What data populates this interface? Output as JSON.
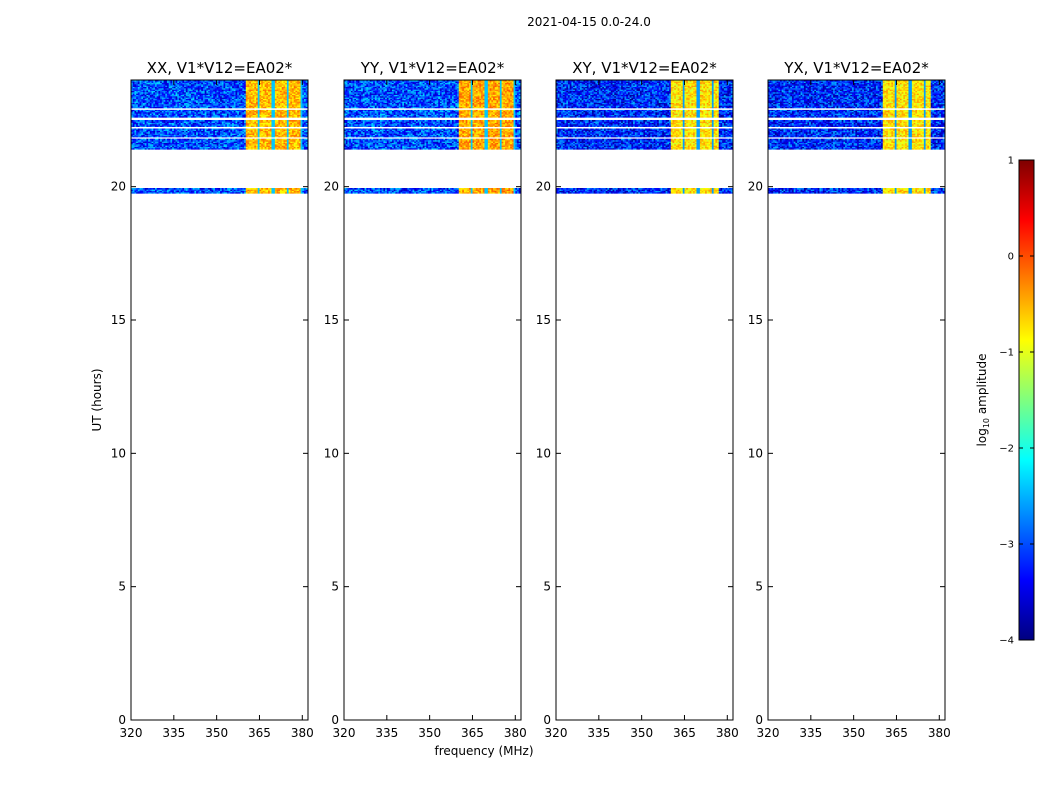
{
  "figure": {
    "suptitle": "2021-04-15 0.0-24.0",
    "xlabel": "frequency (MHz)",
    "ylabel": "UT (hours)"
  },
  "colorbar": {
    "label_base": "log",
    "label_sub": "10",
    "label_rest": " amplitude",
    "range": [
      -4,
      1
    ],
    "ticks": [
      "1",
      "0",
      "−1",
      "−2",
      "−3",
      "−4"
    ],
    "tick_values": [
      1,
      0,
      -1,
      -2,
      -3,
      -4
    ],
    "colormap": "jet",
    "colors": [
      "#00007f",
      "#0000ff",
      "#007fff",
      "#00ffff",
      "#7fff7f",
      "#ffff00",
      "#ff7f00",
      "#ff0000",
      "#7f0000"
    ]
  },
  "chart_data": [
    {
      "type": "heatmap",
      "title": "XX, V1*V12=EA02*",
      "xlabel": "frequency (MHz)",
      "ylabel": "UT (hours)",
      "xlim": [
        320,
        382
      ],
      "ylim": [
        0,
        24
      ],
      "xticks": [
        320,
        335,
        350,
        365,
        380
      ],
      "yticks": [
        0,
        5,
        10,
        15,
        20
      ],
      "data_ut_ranges": [
        [
          21.4,
          24.0
        ],
        [
          19.75,
          19.95
        ]
      ],
      "dominant_log10_amplitude": -3.0,
      "bright_freq_bands_mhz": [
        [
          360,
          380
        ]
      ],
      "bright_log10_amplitude": -0.7
    },
    {
      "type": "heatmap",
      "title": "YY, V1*V12=EA02*",
      "xlabel": "frequency (MHz)",
      "ylabel": "UT (hours)",
      "xlim": [
        320,
        382
      ],
      "ylim": [
        0,
        24
      ],
      "xticks": [
        320,
        335,
        350,
        365,
        380
      ],
      "yticks": [
        0,
        5,
        10,
        15,
        20
      ],
      "data_ut_ranges": [
        [
          21.4,
          24.0
        ],
        [
          19.75,
          19.95
        ]
      ],
      "dominant_log10_amplitude": -3.0,
      "bright_freq_bands_mhz": [
        [
          360,
          380
        ]
      ],
      "bright_log10_amplitude": -0.6
    },
    {
      "type": "heatmap",
      "title": "XY, V1*V12=EA02*",
      "xlabel": "frequency (MHz)",
      "ylabel": "UT (hours)",
      "xlim": [
        320,
        382
      ],
      "ylim": [
        0,
        24
      ],
      "xticks": [
        320,
        335,
        350,
        365,
        380
      ],
      "yticks": [
        0,
        5,
        10,
        15,
        20
      ],
      "data_ut_ranges": [
        [
          21.4,
          24.0
        ],
        [
          19.75,
          19.95
        ]
      ],
      "dominant_log10_amplitude": -3.2,
      "bright_freq_bands_mhz": [
        [
          360,
          377
        ]
      ],
      "bright_log10_amplitude": -0.9
    },
    {
      "type": "heatmap",
      "title": "YX, V1*V12=EA02*",
      "xlabel": "frequency (MHz)",
      "ylabel": "UT (hours)",
      "xlim": [
        320,
        382
      ],
      "ylim": [
        0,
        24
      ],
      "xticks": [
        320,
        335,
        350,
        365,
        380
      ],
      "yticks": [
        0,
        5,
        10,
        15,
        20
      ],
      "data_ut_ranges": [
        [
          21.4,
          24.0
        ],
        [
          19.75,
          19.95
        ]
      ],
      "dominant_log10_amplitude": -3.2,
      "bright_freq_bands_mhz": [
        [
          360,
          377
        ]
      ],
      "bright_log10_amplitude": -0.9
    }
  ]
}
